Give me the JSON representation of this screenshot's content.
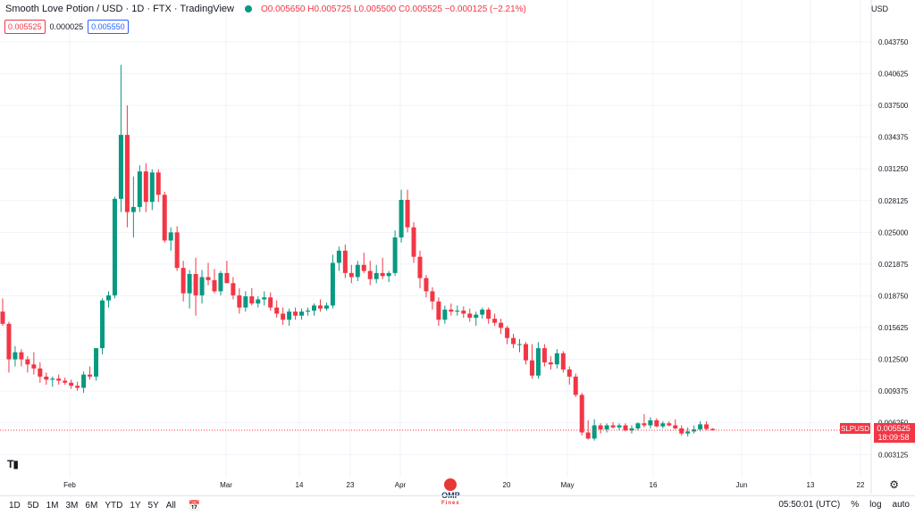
{
  "legend": {
    "title": "Smooth Love Potion / USD · 1D · FTX · TradingView",
    "ohlc_text": "O0.005650 H0.005725 L0.005500 C0.005525 −0.000125 (−2.21%)"
  },
  "bidask": {
    "bid": "0.005525",
    "spread": "0.000025",
    "ask": "0.005550"
  },
  "currency": "USD",
  "price_label": {
    "symbol": "SLPUSD",
    "price": "0.005525",
    "countdown": "18:09:58"
  },
  "timeframes": [
    "1D",
    "5D",
    "1M",
    "3M",
    "6M",
    "YTD",
    "1Y",
    "5Y",
    "All"
  ],
  "bottom_right": {
    "time": "05:50:01 (UTC)",
    "percent": "%",
    "log": "log",
    "auto": "auto"
  },
  "watermark": {
    "brand": "OMP",
    "sub": "Finex"
  },
  "tv_logo": "T▮",
  "colors": {
    "up": "#089981",
    "down": "#f23645",
    "grid": "#f0f3fa"
  },
  "chart_data": {
    "type": "candlestick",
    "symbol": "SLPUSD",
    "y_ticks": [
      "0.043750",
      "0.040625",
      "0.037500",
      "0.034375",
      "0.031250",
      "0.028125",
      "0.025000",
      "0.021875",
      "0.018750",
      "0.015625",
      "0.012500",
      "0.009375",
      "0.006250",
      "0.003125"
    ],
    "x_ticks": [
      "Feb",
      "Mar",
      "14",
      "23",
      "Apr",
      "20",
      "May",
      "16",
      "Jun",
      "13",
      "22"
    ],
    "ylim": [
      0.0015,
      0.0465
    ],
    "candles": [
      [
        0.0172,
        0.0185,
        0.0158,
        0.016
      ],
      [
        0.016,
        0.0162,
        0.0112,
        0.0125
      ],
      [
        0.0125,
        0.0138,
        0.0118,
        0.0132
      ],
      [
        0.0132,
        0.0135,
        0.0118,
        0.0125
      ],
      [
        0.0125,
        0.0128,
        0.0112,
        0.012
      ],
      [
        0.012,
        0.0132,
        0.011,
        0.0116
      ],
      [
        0.0116,
        0.0122,
        0.0102,
        0.0108
      ],
      [
        0.0108,
        0.0112,
        0.01,
        0.0105
      ],
      [
        0.0105,
        0.0108,
        0.0098,
        0.0106
      ],
      [
        0.0106,
        0.011,
        0.01,
        0.0104
      ],
      [
        0.0104,
        0.0107,
        0.01,
        0.0102
      ],
      [
        0.0102,
        0.0105,
        0.0096,
        0.0099
      ],
      [
        0.0099,
        0.0103,
        0.0094,
        0.0097
      ],
      [
        0.0097,
        0.0113,
        0.0092,
        0.011
      ],
      [
        0.011,
        0.0118,
        0.0105,
        0.0108
      ],
      [
        0.0108,
        0.0136,
        0.0104,
        0.0136
      ],
      [
        0.0136,
        0.0185,
        0.013,
        0.0183
      ],
      [
        0.0183,
        0.0192,
        0.0176,
        0.0188
      ],
      [
        0.0188,
        0.0285,
        0.0185,
        0.0283
      ],
      [
        0.0283,
        0.0415,
        0.027,
        0.0346
      ],
      [
        0.0346,
        0.0375,
        0.0255,
        0.027
      ],
      [
        0.027,
        0.0305,
        0.0245,
        0.0275
      ],
      [
        0.0275,
        0.0316,
        0.027,
        0.031
      ],
      [
        0.031,
        0.0318,
        0.027,
        0.028
      ],
      [
        0.028,
        0.0312,
        0.0272,
        0.0309
      ],
      [
        0.0309,
        0.0312,
        0.028,
        0.0287
      ],
      [
        0.0287,
        0.029,
        0.024,
        0.0242
      ],
      [
        0.0242,
        0.0255,
        0.0232,
        0.025
      ],
      [
        0.025,
        0.0256,
        0.0212,
        0.0215
      ],
      [
        0.0215,
        0.0222,
        0.0182,
        0.019
      ],
      [
        0.019,
        0.0213,
        0.0175,
        0.0209
      ],
      [
        0.0209,
        0.0225,
        0.0168,
        0.0188
      ],
      [
        0.0188,
        0.0213,
        0.018,
        0.0206
      ],
      [
        0.0206,
        0.022,
        0.0198,
        0.0203
      ],
      [
        0.0203,
        0.0214,
        0.019,
        0.0192
      ],
      [
        0.0192,
        0.0212,
        0.0188,
        0.021
      ],
      [
        0.021,
        0.0222,
        0.02,
        0.02
      ],
      [
        0.02,
        0.0206,
        0.0184,
        0.0188
      ],
      [
        0.0188,
        0.0195,
        0.017,
        0.0176
      ],
      [
        0.0176,
        0.0192,
        0.0172,
        0.0187
      ],
      [
        0.0187,
        0.0195,
        0.0178,
        0.018
      ],
      [
        0.018,
        0.0187,
        0.0176,
        0.0184
      ],
      [
        0.0184,
        0.0192,
        0.0178,
        0.0186
      ],
      [
        0.0186,
        0.0191,
        0.0173,
        0.0176
      ],
      [
        0.0176,
        0.0183,
        0.0166,
        0.017
      ],
      [
        0.017,
        0.0176,
        0.0159,
        0.0164
      ],
      [
        0.0164,
        0.0175,
        0.0158,
        0.0172
      ],
      [
        0.0172,
        0.0176,
        0.0164,
        0.0168
      ],
      [
        0.0168,
        0.0175,
        0.0164,
        0.0172
      ],
      [
        0.0172,
        0.0176,
        0.0168,
        0.0173
      ],
      [
        0.0173,
        0.018,
        0.0168,
        0.0178
      ],
      [
        0.0178,
        0.0184,
        0.0172,
        0.0175
      ],
      [
        0.0175,
        0.0181,
        0.0173,
        0.0178
      ],
      [
        0.0178,
        0.0228,
        0.0175,
        0.022
      ],
      [
        0.022,
        0.0236,
        0.0212,
        0.0232
      ],
      [
        0.0232,
        0.0238,
        0.0205,
        0.021
      ],
      [
        0.021,
        0.0218,
        0.02,
        0.0206
      ],
      [
        0.0206,
        0.0222,
        0.0202,
        0.0218
      ],
      [
        0.0218,
        0.023,
        0.021,
        0.0212
      ],
      [
        0.0212,
        0.0222,
        0.0198,
        0.0204
      ],
      [
        0.0204,
        0.0218,
        0.02,
        0.021
      ],
      [
        0.021,
        0.0225,
        0.0204,
        0.0207
      ],
      [
        0.0207,
        0.0212,
        0.0201,
        0.021
      ],
      [
        0.021,
        0.0252,
        0.0207,
        0.0245
      ],
      [
        0.0245,
        0.0292,
        0.024,
        0.0282
      ],
      [
        0.0282,
        0.0292,
        0.025,
        0.0255
      ],
      [
        0.0255,
        0.026,
        0.022,
        0.0226
      ],
      [
        0.0226,
        0.0232,
        0.0195,
        0.0205
      ],
      [
        0.0205,
        0.0208,
        0.0186,
        0.0192
      ],
      [
        0.0192,
        0.0196,
        0.0174,
        0.0182
      ],
      [
        0.0182,
        0.0186,
        0.0158,
        0.0164
      ],
      [
        0.0164,
        0.0178,
        0.016,
        0.0174
      ],
      [
        0.0174,
        0.018,
        0.0168,
        0.0172
      ],
      [
        0.0172,
        0.0178,
        0.0168,
        0.0173
      ],
      [
        0.0173,
        0.0177,
        0.0166,
        0.017
      ],
      [
        0.017,
        0.0175,
        0.0162,
        0.0166
      ],
      [
        0.0166,
        0.0172,
        0.0158,
        0.0169
      ],
      [
        0.0169,
        0.0176,
        0.0165,
        0.0174
      ],
      [
        0.0174,
        0.0176,
        0.016,
        0.0165
      ],
      [
        0.0165,
        0.017,
        0.0158,
        0.0161
      ],
      [
        0.0161,
        0.0165,
        0.015,
        0.0156
      ],
      [
        0.0156,
        0.0158,
        0.014,
        0.0146
      ],
      [
        0.0146,
        0.015,
        0.0136,
        0.014
      ],
      [
        0.014,
        0.0145,
        0.0132,
        0.014
      ],
      [
        0.014,
        0.0142,
        0.012,
        0.0124
      ],
      [
        0.0124,
        0.014,
        0.0106,
        0.0109
      ],
      [
        0.0109,
        0.0142,
        0.0106,
        0.0136
      ],
      [
        0.0136,
        0.014,
        0.0118,
        0.0122
      ],
      [
        0.0122,
        0.0128,
        0.0115,
        0.012
      ],
      [
        0.012,
        0.0135,
        0.0116,
        0.0131
      ],
      [
        0.0131,
        0.0133,
        0.0112,
        0.0115
      ],
      [
        0.0115,
        0.0118,
        0.01,
        0.0108
      ],
      [
        0.0108,
        0.0111,
        0.0088,
        0.009
      ],
      [
        0.009,
        0.0092,
        0.005,
        0.0053
      ],
      [
        0.0053,
        0.0065,
        0.0046,
        0.0047
      ],
      [
        0.0047,
        0.0066,
        0.0045,
        0.006
      ],
      [
        0.006,
        0.0062,
        0.0052,
        0.0056
      ],
      [
        0.0056,
        0.0062,
        0.0053,
        0.006
      ],
      [
        0.006,
        0.0063,
        0.0057,
        0.0058
      ],
      [
        0.0058,
        0.0062,
        0.0055,
        0.006
      ],
      [
        0.006,
        0.0062,
        0.0054,
        0.0055
      ],
      [
        0.0055,
        0.006,
        0.0052,
        0.0057
      ],
      [
        0.0057,
        0.0063,
        0.0055,
        0.0062
      ],
      [
        0.0062,
        0.0071,
        0.0058,
        0.006
      ],
      [
        0.006,
        0.0068,
        0.0057,
        0.0065
      ],
      [
        0.0065,
        0.0067,
        0.0058,
        0.0059
      ],
      [
        0.0059,
        0.0064,
        0.0057,
        0.0062
      ],
      [
        0.0062,
        0.0064,
        0.0059,
        0.006
      ],
      [
        0.006,
        0.0066,
        0.0056,
        0.0057
      ],
      [
        0.0057,
        0.006,
        0.005,
        0.0052
      ],
      [
        0.0052,
        0.0058,
        0.0049,
        0.0054
      ],
      [
        0.0054,
        0.006,
        0.0052,
        0.0056
      ],
      [
        0.0056,
        0.0064,
        0.0054,
        0.0061
      ],
      [
        0.0061,
        0.0064,
        0.0055,
        0.00565
      ],
      [
        0.00565,
        0.005725,
        0.0055,
        0.005525
      ]
    ]
  }
}
